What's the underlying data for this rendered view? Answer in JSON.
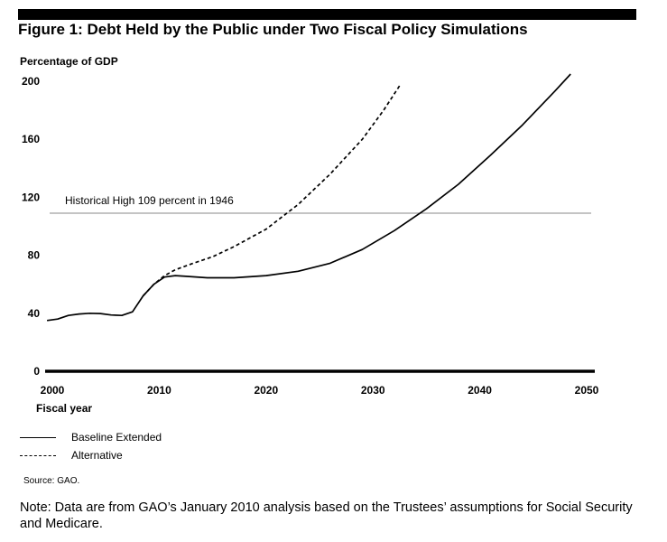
{
  "figure": {
    "title": "Figure 1: Debt Held by the Public under Two Fiscal Policy Simulations",
    "source": "Source: GAO.",
    "note": "Note:  Data are from GAO’s January 2010 analysis based on the Trustees’ assumptions for Social Security and Medicare."
  },
  "chart_data": {
    "type": "line",
    "title": "Figure 1: Debt Held by the Public under Two Fiscal Policy Simulations",
    "ylabel": "Percentage of GDP",
    "xlabel": "Fiscal year",
    "xlim": [
      2000,
      2050
    ],
    "ylim": [
      0,
      200
    ],
    "xticks": [
      2000,
      2010,
      2020,
      2030,
      2040,
      2050
    ],
    "yticks": [
      0,
      40,
      80,
      120,
      160,
      200
    ],
    "grid": false,
    "legend_position": "bottom-left",
    "annotation": {
      "text": "Historical High 109 percent in 1946",
      "y": 109
    },
    "series": [
      {
        "name": "Baseline Extended",
        "style": "solid",
        "points": [
          [
            1999.5,
            35
          ],
          [
            2000.5,
            36
          ],
          [
            2001.5,
            38.5
          ],
          [
            2002.5,
            39.5
          ],
          [
            2003.5,
            40
          ],
          [
            2004.5,
            39.8
          ],
          [
            2005.5,
            38.8
          ],
          [
            2006.5,
            38.5
          ],
          [
            2007.5,
            41
          ],
          [
            2008.5,
            52
          ],
          [
            2009.5,
            60
          ],
          [
            2010.5,
            65
          ],
          [
            2011.5,
            66
          ],
          [
            2012.5,
            65.5
          ],
          [
            2014.5,
            64.5
          ],
          [
            2017,
            64.5
          ],
          [
            2020,
            66
          ],
          [
            2023,
            69
          ],
          [
            2026,
            74.5
          ],
          [
            2029,
            84
          ],
          [
            2032,
            97
          ],
          [
            2035,
            112
          ],
          [
            2038,
            129
          ],
          [
            2041,
            149
          ],
          [
            2044,
            170
          ],
          [
            2047,
            193
          ],
          [
            2048.5,
            205
          ]
        ]
      },
      {
        "name": "Alternative",
        "style": "dashed",
        "points": [
          [
            2008.5,
            52
          ],
          [
            2009.5,
            60
          ],
          [
            2010.5,
            66
          ],
          [
            2011.5,
            70
          ],
          [
            2013,
            74
          ],
          [
            2015,
            79
          ],
          [
            2017,
            86
          ],
          [
            2020,
            98
          ],
          [
            2023,
            115
          ],
          [
            2026,
            136
          ],
          [
            2029,
            160
          ],
          [
            2031,
            180
          ],
          [
            2032.5,
            197
          ]
        ]
      }
    ]
  },
  "colors": {
    "line": "#000000",
    "reference_line": "#888888",
    "top_bar": "#000000"
  }
}
